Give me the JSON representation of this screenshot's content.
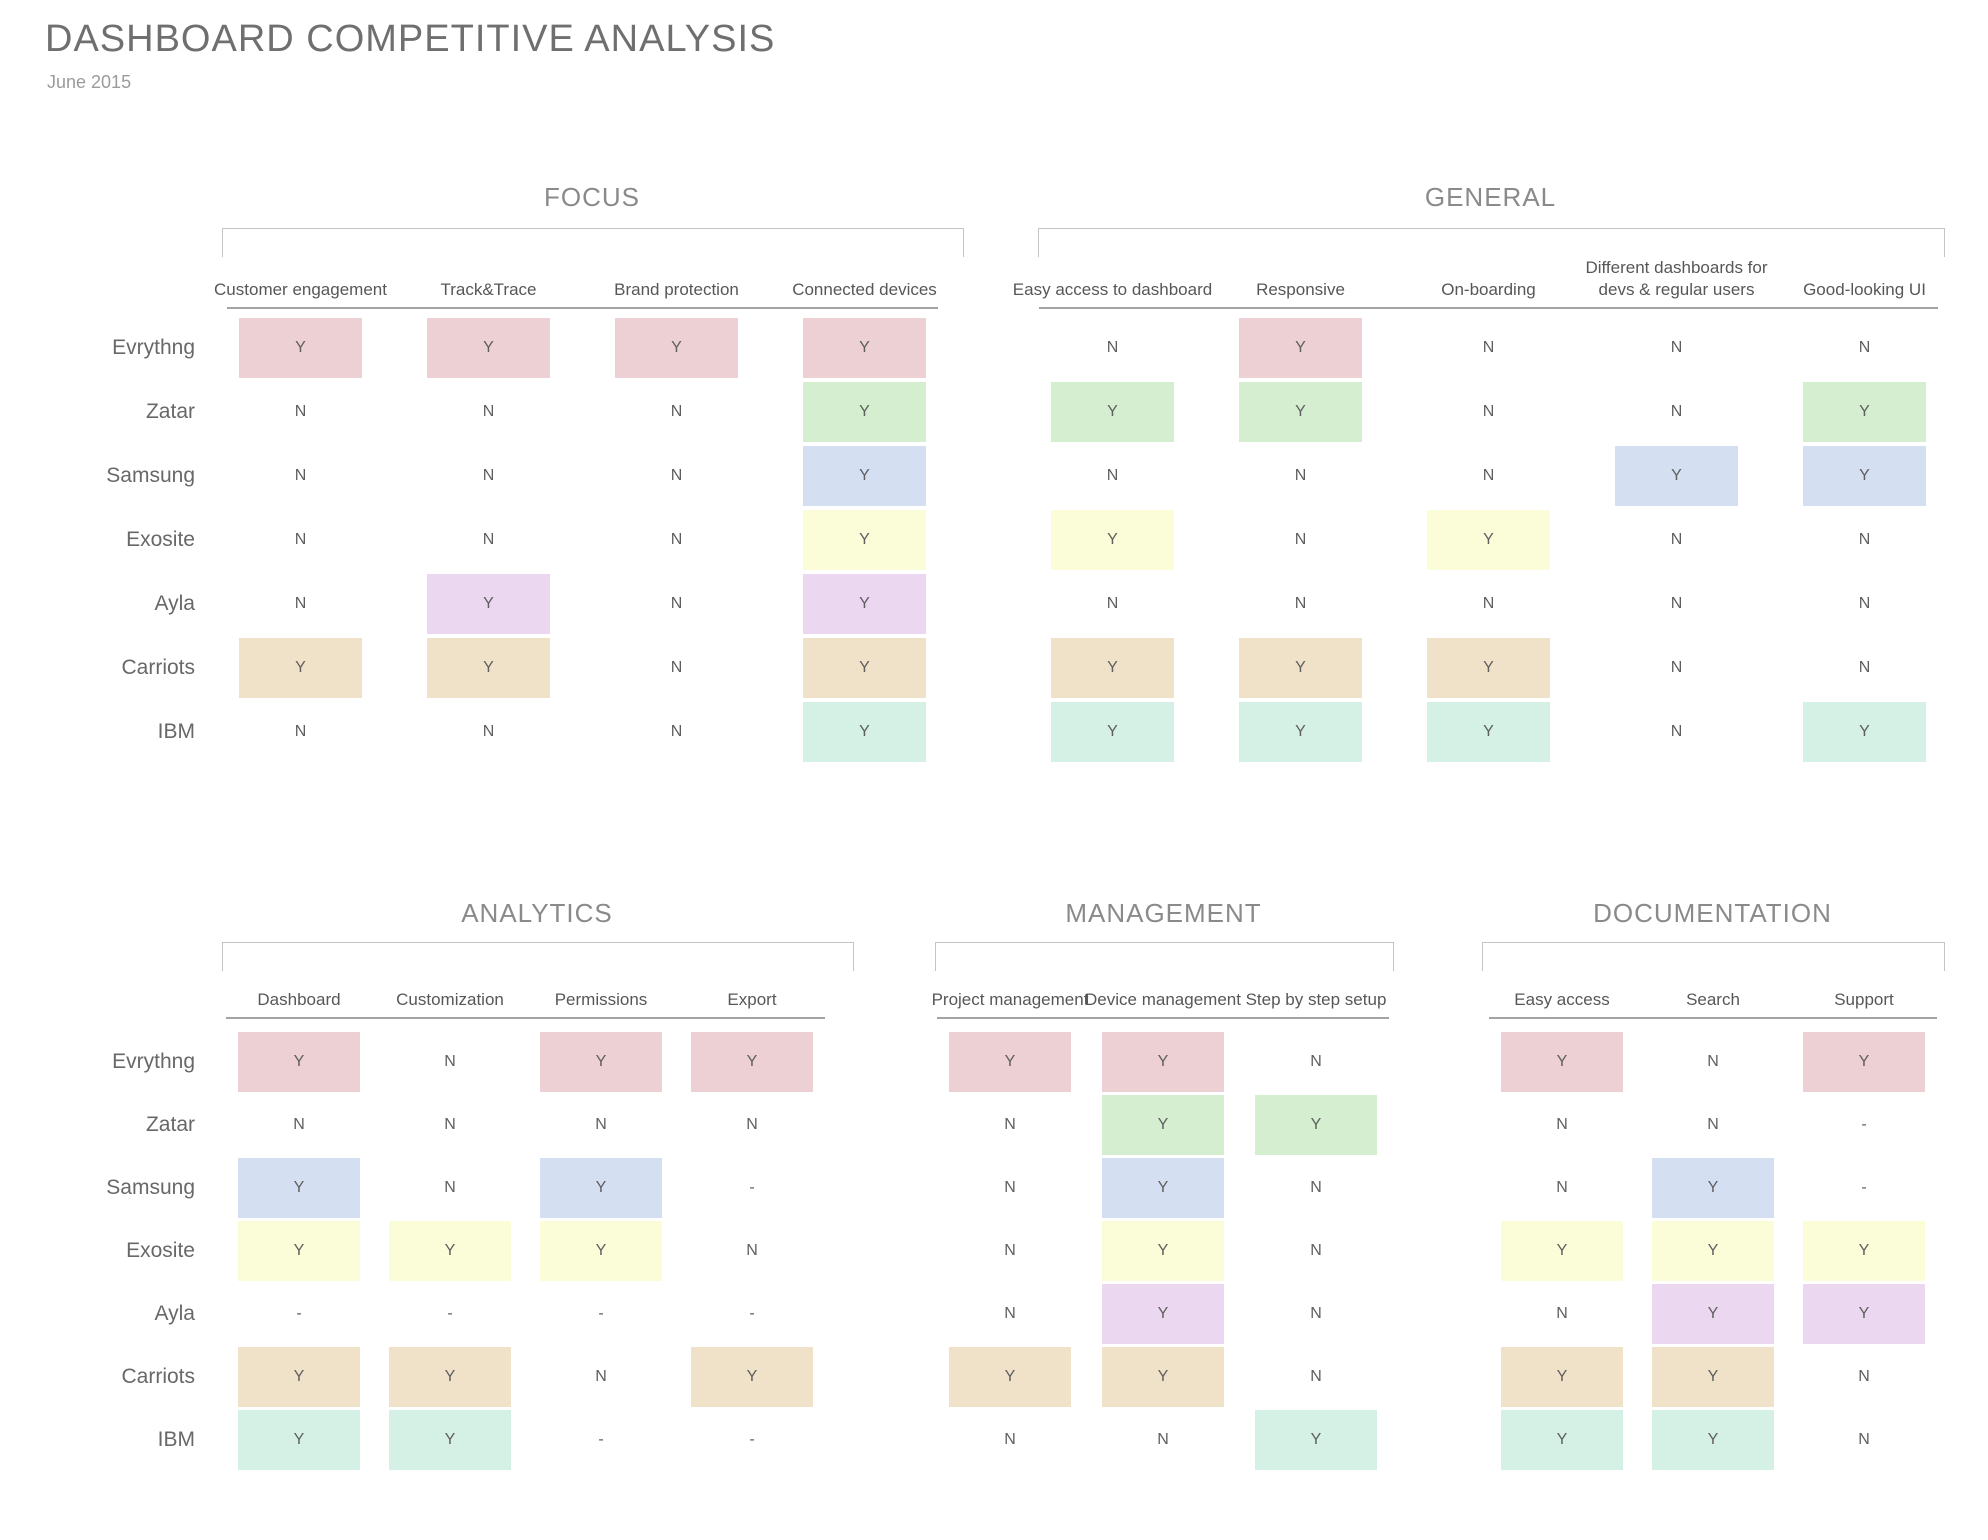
{
  "page": {
    "title": "DASHBOARD COMPETITIVE ANALYSIS",
    "subtitle": "June 2015"
  },
  "value_labels": {
    "yes": "Y",
    "no": "N",
    "not_available": "-"
  },
  "competitors": [
    {
      "name": "Evrythng",
      "color": "#edd0d4"
    },
    {
      "name": "Zatar",
      "color": "#d4eecf"
    },
    {
      "name": "Samsung",
      "color": "#d5dff2"
    },
    {
      "name": "Exosite",
      "color": "#fbfcd8"
    },
    {
      "name": "Ayla",
      "color": "#ecd7f0"
    },
    {
      "name": "Carriots",
      "color": "#f0e2c8"
    },
    {
      "name": "IBM",
      "color": "#d5f0e5"
    }
  ],
  "sections": [
    {
      "id": "focus",
      "title": "FOCUS",
      "columns": [
        "Customer engagement",
        "Track&Trace",
        "Brand protection",
        "Connected devices"
      ],
      "values": [
        [
          "Y",
          "Y",
          "Y",
          "Y"
        ],
        [
          "N",
          "N",
          "N",
          "Y"
        ],
        [
          "N",
          "N",
          "N",
          "Y"
        ],
        [
          "N",
          "N",
          "N",
          "Y"
        ],
        [
          "N",
          "Y",
          "N",
          "Y"
        ],
        [
          "Y",
          "Y",
          "N",
          "Y"
        ],
        [
          "N",
          "N",
          "N",
          "Y"
        ]
      ]
    },
    {
      "id": "general",
      "title": "GENERAL",
      "columns": [
        "Easy access to dashboard",
        "Responsive",
        "On-boarding",
        "Different dashboards for devs & regular users",
        "Good-looking UI"
      ],
      "values": [
        [
          "N",
          "Y",
          "N",
          "N",
          "N"
        ],
        [
          "Y",
          "Y",
          "N",
          "N",
          "Y"
        ],
        [
          "N",
          "N",
          "N",
          "Y",
          "Y"
        ],
        [
          "Y",
          "N",
          "Y",
          "N",
          "N"
        ],
        [
          "N",
          "N",
          "N",
          "N",
          "N"
        ],
        [
          "Y",
          "Y",
          "Y",
          "N",
          "N"
        ],
        [
          "Y",
          "Y",
          "Y",
          "N",
          "Y"
        ]
      ]
    },
    {
      "id": "analytics",
      "title": "ANALYTICS",
      "columns": [
        "Dashboard",
        "Customization",
        "Permissions",
        "Export"
      ],
      "values": [
        [
          "Y",
          "N",
          "Y",
          "Y"
        ],
        [
          "N",
          "N",
          "N",
          "N"
        ],
        [
          "Y",
          "N",
          "Y",
          "-"
        ],
        [
          "Y",
          "Y",
          "Y",
          "N"
        ],
        [
          "-",
          "-",
          "-",
          "-"
        ],
        [
          "Y",
          "Y",
          "N",
          "Y"
        ],
        [
          "Y",
          "Y",
          "-",
          "-"
        ]
      ]
    },
    {
      "id": "management",
      "title": "MANAGEMENT",
      "columns": [
        "Project management",
        "Device management",
        "Step by step setup"
      ],
      "values": [
        [
          "Y",
          "Y",
          "N"
        ],
        [
          "N",
          "Y",
          "Y"
        ],
        [
          "N",
          "Y",
          "N"
        ],
        [
          "N",
          "Y",
          "N"
        ],
        [
          "N",
          "Y",
          "N"
        ],
        [
          "Y",
          "Y",
          "N"
        ],
        [
          "N",
          "N",
          "Y"
        ]
      ]
    },
    {
      "id": "documentation",
      "title": "DOCUMENTATION",
      "columns": [
        "Easy access",
        "Search",
        "Support"
      ],
      "values": [
        [
          "Y",
          "N",
          "Y"
        ],
        [
          "N",
          "N",
          "-"
        ],
        [
          "N",
          "Y",
          "-"
        ],
        [
          "Y",
          "Y",
          "Y"
        ],
        [
          "N",
          "Y",
          "Y"
        ],
        [
          "Y",
          "Y",
          "N"
        ],
        [
          "Y",
          "Y",
          "N"
        ]
      ]
    }
  ]
}
